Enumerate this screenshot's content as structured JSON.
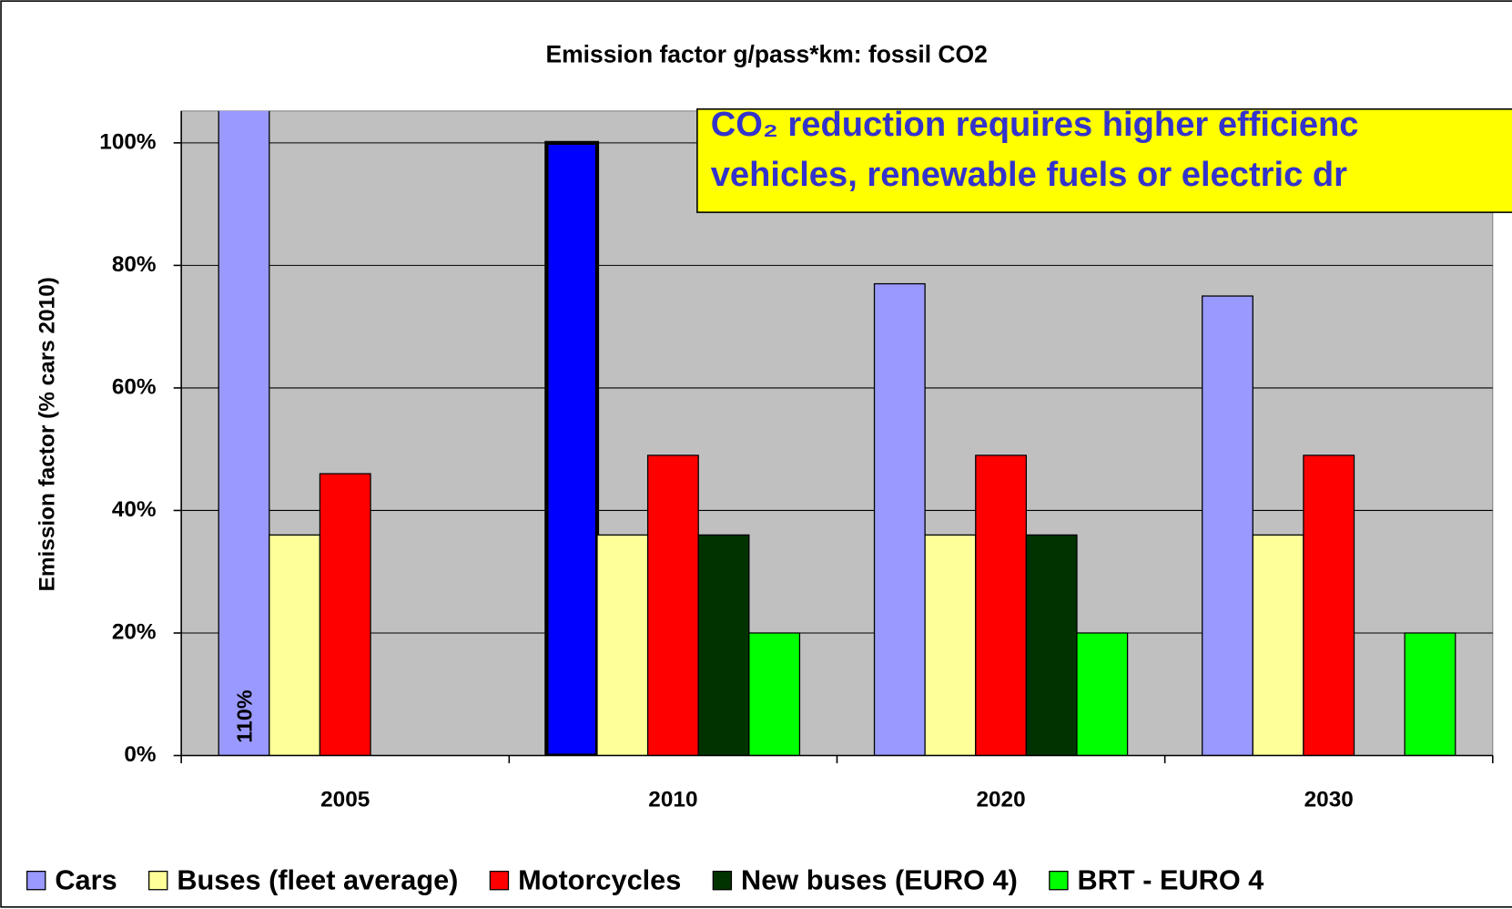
{
  "chart_data": {
    "type": "bar",
    "title": "Emission factor  g/pass*km: fossil CO2",
    "y_label": "Emission factor (% cars 2010)",
    "categories": [
      "2005",
      "2010",
      "2020",
      "2030"
    ],
    "series": [
      {
        "name": "Cars",
        "color": "#9999ff",
        "values": [
          110,
          100,
          77,
          75
        ],
        "value_labels": [
          "110%",
          null,
          null,
          null
        ]
      },
      {
        "name": "Buses (fleet average)",
        "color": "#ffff99",
        "values": [
          36,
          36,
          36,
          36
        ]
      },
      {
        "name": "Motorcycles",
        "color": "#ff0000",
        "values": [
          46,
          49,
          49,
          49
        ]
      },
      {
        "name": "New buses (EURO 4)",
        "color": "#003300",
        "values": [
          null,
          36,
          36,
          null
        ]
      },
      {
        "name": "BRT - EURO 4",
        "color": "#00ff00",
        "values": [
          null,
          20,
          20,
          20
        ]
      }
    ],
    "highlight": {
      "series": 0,
      "index": 1,
      "color": "#0000ff"
    },
    "ylim": [
      0,
      105.2
    ],
    "yticks": [
      {
        "value": 0,
        "label": "0%"
      },
      {
        "value": 20,
        "label": "20%"
      },
      {
        "value": 40,
        "label": "40%"
      },
      {
        "value": 60,
        "label": "60%"
      },
      {
        "value": 80,
        "label": "80%"
      },
      {
        "value": 100,
        "label": "100%"
      }
    ],
    "grid": true,
    "annotation": [
      "CO₂ reduction requires higher efficienc",
      "vehicles, renewable fuels or electric dr"
    ]
  }
}
